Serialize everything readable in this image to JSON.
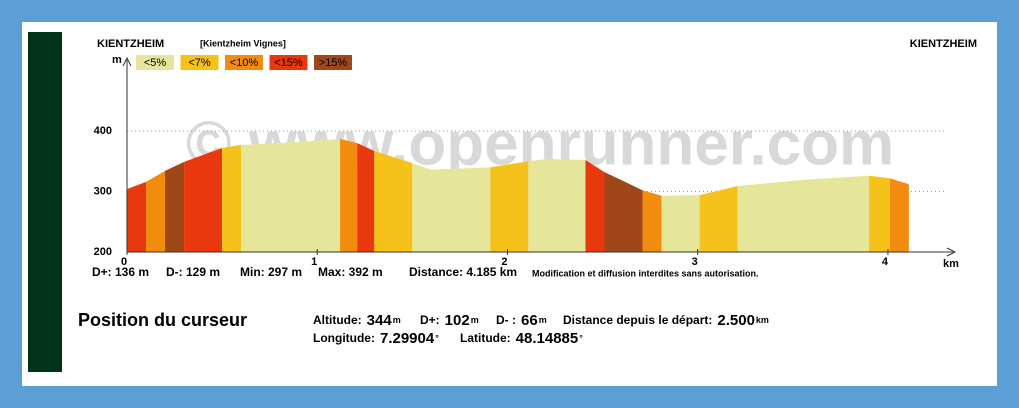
{
  "chart_data": {
    "type": "elevation-profile",
    "start_label": "KIENTZHEIM",
    "start_sublabel": "[Kientzheim Vignes]",
    "end_label": "KIENTZHEIM",
    "watermark": "© www.openrunner.com",
    "x_label": "km",
    "y_label": "m",
    "x": [
      0,
      0.1,
      0.2,
      0.3,
      0.5,
      0.6,
      0.91,
      1.12,
      1.21,
      1.3,
      1.5,
      1.6,
      1.91,
      2.11,
      2.21,
      2.41,
      2.51,
      2.71,
      2.81,
      3.01,
      3.21,
      3.54,
      3.9,
      4.01,
      4.11
    ],
    "values": [
      304,
      316,
      334,
      349,
      372,
      377,
      382,
      387,
      380,
      367,
      347,
      336,
      340,
      350,
      354,
      352,
      332,
      302,
      293,
      294,
      309,
      319,
      326,
      322,
      312
    ],
    "segment_colors": [
      "#e8380d",
      "#f28c0f",
      "#a0471a",
      "#e8380d",
      "#f5c21b",
      "#e6e69a",
      "#e6e69a",
      "#f28c0f",
      "#e8380d",
      "#f5c21b",
      "#e6e69a",
      "#e6e69a",
      "#f5c21b",
      "#e6e69a",
      "#e6e69a",
      "#e8380d",
      "#a0471a",
      "#f28c0f",
      "#e6e69a",
      "#f5c21b",
      "#e6e69a",
      "#e6e69a",
      "#f5c21b",
      "#f28c0f"
    ],
    "legend": [
      {
        "label": "<5%",
        "color": "#e6e69a"
      },
      {
        "label": "<7%",
        "color": "#f5c21b"
      },
      {
        "label": "<10%",
        "color": "#f28c0f"
      },
      {
        "label": "<15%",
        "color": "#e8380d"
      },
      {
        "label": ">15%",
        "color": "#a0471a"
      }
    ],
    "xlim": [
      0,
      4.3
    ],
    "ylim": [
      200,
      500
    ],
    "xticks": [
      0,
      1,
      2,
      3,
      4
    ],
    "yticks": [
      200,
      300,
      400
    ],
    "grid": true,
    "stats": [
      "D+: 136 m",
      "D-: 129 m",
      "Min: 297 m",
      "Max: 392 m",
      "Distance: 4.185 km"
    ],
    "notice": "Modification et diffusion interdites sans autorisation."
  },
  "cursor": {
    "title": "Position du curseur",
    "rows": [
      [
        {
          "label": "Altitude:",
          "value": "344",
          "unit": "m"
        },
        {
          "label": "D+:",
          "value": "102",
          "unit": "m"
        },
        {
          "label": "D- :",
          "value": "66",
          "unit": "m"
        },
        {
          "label": "Distance depuis le départ:",
          "value": "2.500",
          "unit": "km"
        }
      ],
      [
        {
          "label": "Longitude:",
          "value": "7.29904",
          "unit": "°"
        },
        {
          "label": "Latitude:",
          "value": "48.14885",
          "unit": "°"
        }
      ]
    ]
  }
}
